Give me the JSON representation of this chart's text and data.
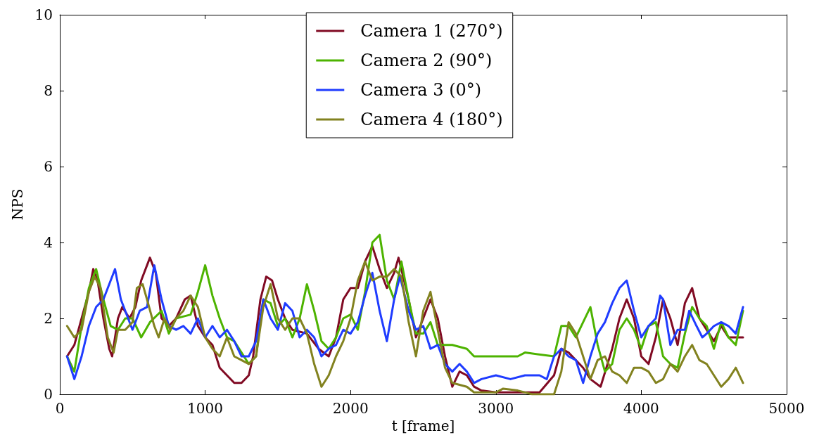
{
  "chart_data": {
    "type": "line",
    "xlabel": "t [frame]",
    "ylabel": "NPS",
    "xlim": [
      0,
      5000
    ],
    "xticks": [
      0,
      1000,
      2000,
      3000,
      4000,
      5000
    ],
    "ylim": [
      0,
      10
    ],
    "yticks": [
      0,
      2,
      4,
      6,
      8,
      10
    ],
    "grid": false,
    "legend": "top",
    "marker": "none",
    "line_style": "solid",
    "series": [
      {
        "name": "Camera 1 (270°)",
        "color": "#800a23",
        "x": [
          50,
          100,
          150,
          200,
          230,
          260,
          300,
          340,
          360,
          400,
          430,
          480,
          520,
          560,
          620,
          660,
          700,
          750,
          800,
          860,
          900,
          950,
          1000,
          1050,
          1100,
          1150,
          1200,
          1250,
          1300,
          1330,
          1380,
          1420,
          1460,
          1500,
          1550,
          1600,
          1700,
          1780,
          1850,
          1900,
          1950,
          2000,
          2050,
          2100,
          2150,
          2200,
          2250,
          2300,
          2330,
          2400,
          2450,
          2500,
          2550,
          2600,
          2650,
          2700,
          2750,
          2800,
          2850,
          2900,
          3000,
          3100,
          3300,
          3400,
          3450,
          3500,
          3600,
          3650,
          3720,
          3800,
          3850,
          3900,
          3950,
          4000,
          4050,
          4100,
          4150,
          4200,
          4250,
          4300,
          4350,
          4400,
          4450,
          4500,
          4550,
          4600,
          4700
        ],
        "values": [
          1.0,
          1.3,
          2.0,
          2.7,
          3.3,
          3.0,
          2.0,
          1.2,
          1.0,
          2.0,
          2.3,
          2.0,
          2.3,
          3.0,
          3.6,
          3.2,
          2.0,
          1.8,
          2.0,
          2.5,
          2.6,
          1.8,
          1.5,
          1.3,
          0.7,
          0.5,
          0.3,
          0.3,
          0.5,
          1.0,
          2.5,
          3.1,
          3.0,
          2.5,
          2.0,
          1.7,
          1.6,
          1.2,
          1.0,
          1.5,
          2.5,
          2.8,
          2.8,
          3.5,
          3.9,
          3.3,
          2.8,
          3.2,
          3.6,
          2.5,
          1.5,
          2.0,
          2.5,
          2.0,
          1.0,
          0.2,
          0.6,
          0.5,
          0.2,
          0.1,
          0.05,
          0.05,
          0.05,
          0.5,
          1.2,
          1.1,
          0.7,
          0.4,
          0.2,
          1.2,
          2.0,
          2.5,
          2.0,
          1.0,
          0.8,
          1.5,
          2.5,
          2.0,
          1.3,
          2.4,
          2.8,
          2.0,
          1.7,
          1.4,
          1.8,
          1.5,
          1.5
        ]
      },
      {
        "name": "Camera 2 (90°)",
        "color": "#4db300",
        "x": [
          50,
          100,
          150,
          200,
          250,
          300,
          350,
          400,
          450,
          500,
          560,
          620,
          700,
          750,
          800,
          900,
          950,
          1000,
          1050,
          1100,
          1150,
          1200,
          1300,
          1350,
          1400,
          1450,
          1500,
          1550,
          1600,
          1650,
          1700,
          1750,
          1800,
          1850,
          1900,
          1950,
          2000,
          2050,
          2100,
          2150,
          2200,
          2250,
          2300,
          2350,
          2400,
          2450,
          2500,
          2550,
          2600,
          2700,
          2800,
          2850,
          3000,
          3150,
          3200,
          3400,
          3450,
          3500,
          3550,
          3600,
          3650,
          3700,
          3750,
          3800,
          3850,
          3900,
          3950,
          4000,
          4050,
          4100,
          4150,
          4200,
          4250,
          4300,
          4350,
          4400,
          4450,
          4500,
          4550,
          4600,
          4650,
          4700
        ],
        "values": [
          1.0,
          0.6,
          1.8,
          2.8,
          3.3,
          2.5,
          1.8,
          1.7,
          2.0,
          2.0,
          1.5,
          1.9,
          2.2,
          1.6,
          2.0,
          2.1,
          2.7,
          3.4,
          2.6,
          2.0,
          1.5,
          1.4,
          0.8,
          1.0,
          2.5,
          2.4,
          1.8,
          2.0,
          1.5,
          2.0,
          2.9,
          2.2,
          1.4,
          1.2,
          1.5,
          2.0,
          2.1,
          1.7,
          2.7,
          4.0,
          4.2,
          3.0,
          2.5,
          3.5,
          2.5,
          1.6,
          1.6,
          1.9,
          1.3,
          1.3,
          1.2,
          1.0,
          1.0,
          1.0,
          1.1,
          1.0,
          1.8,
          1.8,
          1.5,
          1.9,
          2.3,
          1.3,
          0.6,
          0.8,
          1.7,
          2.0,
          1.7,
          1.2,
          1.8,
          1.9,
          1.0,
          0.8,
          0.7,
          1.6,
          2.3,
          2.0,
          1.8,
          1.2,
          1.9,
          1.5,
          1.3,
          2.2
        ]
      },
      {
        "name": "Camera 3 (0°)",
        "color": "#1f3cff",
        "x": [
          50,
          100,
          150,
          200,
          250,
          300,
          350,
          380,
          420,
          470,
          500,
          550,
          600,
          650,
          700,
          750,
          800,
          850,
          900,
          950,
          1000,
          1050,
          1100,
          1150,
          1200,
          1250,
          1300,
          1350,
          1400,
          1450,
          1500,
          1550,
          1600,
          1650,
          1700,
          1750,
          1800,
          1850,
          1900,
          1950,
          2000,
          2050,
          2100,
          2150,
          2200,
          2250,
          2300,
          2340,
          2400,
          2450,
          2500,
          2550,
          2600,
          2650,
          2700,
          2750,
          2800,
          2850,
          2900,
          3000,
          3100,
          3200,
          3300,
          3350,
          3400,
          3450,
          3500,
          3550,
          3600,
          3650,
          3700,
          3750,
          3800,
          3850,
          3900,
          3950,
          4000,
          4050,
          4100,
          4130,
          4150,
          4200,
          4250,
          4300,
          4330,
          4380,
          4420,
          4450,
          4500,
          4550,
          4600,
          4650,
          4700
        ],
        "values": [
          1.0,
          0.4,
          1.0,
          1.8,
          2.3,
          2.5,
          3.0,
          3.3,
          2.5,
          2.0,
          1.7,
          2.2,
          2.3,
          3.4,
          2.5,
          1.8,
          1.7,
          1.8,
          1.6,
          2.0,
          1.5,
          1.8,
          1.5,
          1.7,
          1.4,
          1.0,
          1.0,
          1.4,
          2.5,
          2.0,
          1.7,
          2.4,
          2.2,
          1.5,
          1.7,
          1.5,
          1.0,
          1.2,
          1.3,
          1.7,
          1.6,
          1.9,
          2.6,
          3.2,
          2.2,
          1.4,
          2.5,
          3.1,
          2.2,
          1.7,
          1.8,
          1.2,
          1.3,
          0.8,
          0.6,
          0.8,
          0.6,
          0.3,
          0.4,
          0.5,
          0.4,
          0.5,
          0.5,
          0.4,
          1.0,
          1.2,
          1.0,
          0.9,
          0.3,
          1.0,
          1.6,
          1.9,
          2.4,
          2.8,
          3.0,
          2.2,
          1.5,
          1.8,
          2.0,
          2.6,
          2.5,
          1.3,
          1.7,
          1.7,
          2.2,
          1.8,
          1.5,
          1.6,
          1.8,
          1.9,
          1.8,
          1.6,
          2.3
        ]
      },
      {
        "name": "Camera 4 (180°)",
        "color": "#82821f",
        "x": [
          50,
          100,
          150,
          200,
          240,
          280,
          330,
          370,
          400,
          450,
          500,
          530,
          570,
          600,
          650,
          680,
          720,
          760,
          800,
          850,
          900,
          950,
          1000,
          1050,
          1100,
          1150,
          1200,
          1250,
          1300,
          1350,
          1400,
          1450,
          1500,
          1550,
          1600,
          1650,
          1700,
          1750,
          1800,
          1850,
          1900,
          1950,
          2000,
          2050,
          2100,
          2150,
          2200,
          2250,
          2300,
          2350,
          2400,
          2450,
          2500,
          2550,
          2600,
          2650,
          2700,
          2800,
          2850,
          2950,
          3000,
          3050,
          3150,
          3250,
          3400,
          3450,
          3500,
          3550,
          3600,
          3650,
          3700,
          3750,
          3800,
          3850,
          3900,
          3950,
          4000,
          4050,
          4100,
          4150,
          4200,
          4250,
          4300,
          4350,
          4400,
          4450,
          4500,
          4550,
          4600,
          4650,
          4700
        ],
        "values": [
          1.8,
          1.5,
          1.7,
          2.7,
          3.1,
          2.8,
          1.5,
          1.1,
          1.7,
          1.7,
          1.9,
          2.8,
          2.9,
          2.5,
          1.8,
          1.5,
          2.0,
          1.7,
          2.0,
          2.2,
          2.6,
          2.3,
          1.5,
          1.2,
          1.0,
          1.5,
          1.0,
          0.9,
          0.8,
          1.0,
          2.3,
          2.9,
          2.0,
          1.7,
          2.0,
          2.0,
          1.6,
          0.8,
          0.2,
          0.5,
          1.0,
          1.4,
          2.0,
          3.0,
          3.5,
          3.0,
          3.1,
          3.1,
          3.3,
          3.1,
          1.9,
          1.0,
          2.2,
          2.7,
          1.7,
          0.7,
          0.3,
          0.2,
          0.05,
          0.05,
          0.05,
          0.15,
          0.1,
          0,
          0,
          0.6,
          1.9,
          1.6,
          1.0,
          0.4,
          0.9,
          1.0,
          0.6,
          0.5,
          0.3,
          0.7,
          0.7,
          0.6,
          0.3,
          0.4,
          0.8,
          0.6,
          1.0,
          1.3,
          0.9,
          0.8,
          0.5,
          0.2,
          0.4,
          0.7,
          0.3
        ]
      }
    ]
  }
}
